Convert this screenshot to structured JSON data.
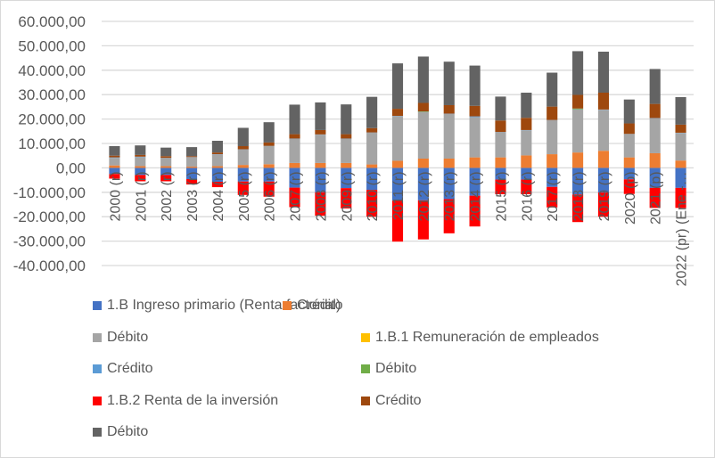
{
  "chart_data": {
    "type": "bar",
    "stacked": true,
    "title": "",
    "xlabel": "",
    "ylabel": "",
    "ylim": [
      -40000,
      60000
    ],
    "yticks": [
      60000,
      50000,
      40000,
      30000,
      20000,
      10000,
      0,
      -10000,
      -20000,
      -30000,
      -40000
    ],
    "ytick_labels": [
      "60.000,00",
      "50.000,00",
      "40.000,00",
      "30.000,00",
      "20.000,00",
      "10.000,00",
      "0,00",
      "-10.000,00",
      "-20.000,00",
      "-30.000,00",
      "-40.000,00"
    ],
    "grid": true,
    "legend_position": "bottom",
    "categories": [
      "2000 (r)",
      "2001 (r)",
      "2002 (r)",
      "2003 (r)",
      "2004 (r)",
      "2005 (r)",
      "2006 (r)",
      "2007 (r)",
      "2008 (r)",
      "2009 (r)",
      "2010 (r)",
      "2011 (r)",
      "2012 (r)",
      "2013 (r)",
      "2014 (r)",
      "2015 (r)",
      "2016 (r)",
      "2017 (r)",
      "2018 (r)",
      "2019 (r)",
      "2020 (p)",
      "2021 (p)",
      "2022 (pr) (Ene -…"
    ],
    "series": [
      {
        "name": "1.B Ingreso primario (Renta factorial)",
        "color": "#4472C4",
        "values": [
          -2500,
          -2900,
          -2900,
          -4600,
          -5700,
          -5600,
          -5600,
          -8100,
          -10000,
          -8300,
          -9000,
          -13400,
          -13300,
          -12800,
          -11400,
          -4800,
          -4800,
          -7800,
          -10900,
          -10100,
          -4700,
          -8200,
          -8200
        ]
      },
      {
        "name": "Crédito",
        "color": "#ED7D31",
        "values": [
          1000,
          700,
          700,
          500,
          700,
          1200,
          1500,
          2000,
          2000,
          2000,
          1400,
          2900,
          3800,
          3800,
          4300,
          4300,
          5100,
          5600,
          6300,
          7000,
          4300,
          6000,
          3000
        ]
      },
      {
        "name": "Débito",
        "color": "#A5A5A5",
        "values": [
          3100,
          3700,
          3300,
          3800,
          4800,
          6300,
          7400,
          9900,
          11600,
          9900,
          13000,
          18300,
          19000,
          18300,
          16500,
          10300,
          10300,
          13900,
          17600,
          16800,
          9500,
          14300,
          11300
        ]
      },
      {
        "name": "1.B.1 Remuneración de empleados",
        "color": "#FFC000",
        "values": [
          0,
          0,
          0,
          0,
          0,
          0,
          0,
          0,
          0,
          0,
          0,
          0,
          0,
          0,
          0,
          0,
          0,
          0,
          0,
          0,
          0,
          0,
          0
        ]
      },
      {
        "name": "Crédito",
        "color": "#5B9BD5",
        "values": [
          200,
          200,
          100,
          100,
          100,
          100,
          100,
          100,
          100,
          100,
          100,
          100,
          100,
          100,
          300,
          100,
          100,
          100,
          100,
          100,
          100,
          100,
          100
        ]
      },
      {
        "name": "Débito",
        "color": "#70AD47",
        "values": [
          0,
          0,
          0,
          0,
          0,
          0,
          0,
          0,
          0,
          0,
          0,
          0,
          200,
          0,
          0,
          0,
          0,
          0,
          300,
          0,
          0,
          0,
          0
        ]
      },
      {
        "name": "1.B.2 Renta de la inversión",
        "color": "#FF0000",
        "values": [
          -1900,
          -2600,
          -2600,
          -2200,
          -2200,
          -5500,
          -6200,
          -8000,
          -9600,
          -8300,
          -11000,
          -16800,
          -16000,
          -14000,
          -12600,
          -6000,
          -6000,
          -8400,
          -11300,
          -9900,
          -6000,
          -8200,
          -8200
        ]
      },
      {
        "name": "Crédito",
        "color": "#9E480E",
        "values": [
          700,
          700,
          700,
          400,
          700,
          1300,
          1400,
          1800,
          1800,
          1800,
          1800,
          2900,
          3500,
          3500,
          4300,
          4700,
          5000,
          5500,
          5600,
          6900,
          4300,
          5800,
          3300
        ]
      },
      {
        "name": "Débito",
        "color": "#636363",
        "values": [
          3900,
          3900,
          3500,
          3700,
          4800,
          7500,
          8300,
          12100,
          11300,
          12200,
          12800,
          18600,
          19000,
          17800,
          16500,
          9800,
          10300,
          13900,
          17900,
          16800,
          9800,
          14300,
          11300
        ]
      }
    ]
  },
  "legend": {
    "items": [
      {
        "label": "1.B Ingreso primario (Renta factorial)",
        "color": "#4472C4"
      },
      {
        "label": "Crédito",
        "color": "#ED7D31"
      },
      {
        "label": "Débito",
        "color": "#A5A5A5"
      },
      {
        "label": "1.B.1 Remuneración de empleados",
        "color": "#FFC000"
      },
      {
        "label": "Crédito",
        "color": "#5B9BD5"
      },
      {
        "label": "Débito",
        "color": "#70AD47"
      },
      {
        "label": "1.B.2 Renta de la inversión",
        "color": "#FF0000"
      },
      {
        "label": "Crédito",
        "color": "#9E480E"
      },
      {
        "label": "Débito",
        "color": "#636363"
      }
    ]
  }
}
